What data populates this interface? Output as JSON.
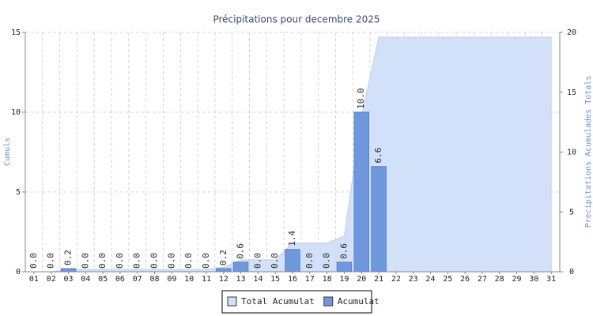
{
  "chart_data": {
    "type": "bar",
    "title": "Précipitations pour decembre 2025",
    "ylabel": "Cumuls",
    "y2label": "Precipitations Acumulades Totals",
    "categories": [
      "01",
      "02",
      "03",
      "04",
      "05",
      "06",
      "07",
      "08",
      "09",
      "10",
      "11",
      "12",
      "13",
      "14",
      "15",
      "16",
      "17",
      "18",
      "19",
      "20",
      "21",
      "22",
      "23",
      "24",
      "25",
      "26",
      "27",
      "28",
      "29",
      "30",
      "31"
    ],
    "series": [
      {
        "name": "Total Acumulat",
        "type": "area",
        "axis": "y2",
        "color": "#d2e0f9",
        "values": [
          0,
          0,
          0.2,
          0.2,
          0.2,
          0.2,
          0.2,
          0.2,
          0.2,
          0.2,
          0.2,
          0.4,
          1.0,
          1.0,
          1.0,
          2.4,
          2.4,
          2.4,
          3.0,
          13.0,
          19.6,
          19.6,
          19.6,
          19.6,
          19.6,
          19.6,
          19.6,
          19.6,
          19.6,
          19.6,
          19.6
        ]
      },
      {
        "name": "Acumulat",
        "type": "bar",
        "color": "#6f98dc",
        "values": [
          0,
          0,
          0.2,
          0,
          0,
          0,
          0,
          0,
          0,
          0,
          0,
          0.2,
          0.6,
          0,
          0,
          1.4,
          0,
          0,
          0.6,
          10.0,
          6.6,
          null,
          null,
          null,
          null,
          null,
          null,
          null,
          null,
          null,
          null
        ],
        "value_labels": [
          "0.0",
          "0.0",
          "0.2",
          "0.0",
          "0.0",
          "0.0",
          "0.0",
          "0.0",
          "0.0",
          "0.0",
          "0.0",
          "0.2",
          "0.6",
          "0.0",
          "0.0",
          "1.4",
          "0.0",
          "0.0",
          "0.6",
          "10.0",
          "6.6",
          null,
          null,
          null,
          null,
          null,
          null,
          null,
          null,
          null,
          null
        ]
      }
    ],
    "ylim": [
      0,
      15
    ],
    "yticks": [
      0,
      5,
      10,
      15
    ],
    "y2lim": [
      0,
      20
    ],
    "y2ticks": [
      0,
      5,
      10,
      15,
      20
    ],
    "grid": true,
    "legend": "bottom"
  }
}
